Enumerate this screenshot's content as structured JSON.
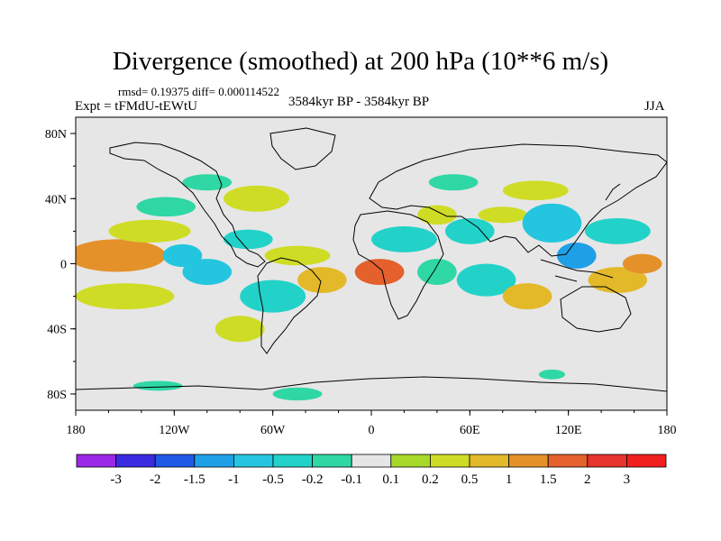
{
  "chart_data": {
    "type": "heatmap",
    "title": "Divergence (smoothed) at 200 hPa (10**6 m/s)",
    "left_annotation": "rmsd= 0.19375 diff= 0.000114522",
    "experiment": "Expt = tFMdU-tEWtU",
    "period": "3584kyr BP - 3584kyr BP",
    "season": "JJA",
    "xlim": [
      -180,
      180
    ],
    "ylim": [
      -90,
      90
    ],
    "x_ticks": [
      {
        "value": -180,
        "label": "180"
      },
      {
        "value": -120,
        "label": "120W"
      },
      {
        "value": -60,
        "label": "60W"
      },
      {
        "value": 0,
        "label": "0"
      },
      {
        "value": 60,
        "label": "60E"
      },
      {
        "value": 120,
        "label": "120E"
      },
      {
        "value": 180,
        "label": "180"
      }
    ],
    "y_ticks": [
      {
        "value": 80,
        "label": "80N"
      },
      {
        "value": 40,
        "label": "40N"
      },
      {
        "value": 0,
        "label": "0"
      },
      {
        "value": -40,
        "label": "40S"
      },
      {
        "value": -80,
        "label": "80S"
      }
    ],
    "colorbar": {
      "levels": [
        "-3",
        "-2",
        "-1.5",
        "-1",
        "-0.5",
        "-0.2",
        "-0.1",
        "0.1",
        "0.2",
        "0.5",
        "1",
        "1.5",
        "2",
        "3"
      ],
      "colors": [
        "#9b28e6",
        "#3c2ae0",
        "#1e5ae6",
        "#1fa0e6",
        "#24c6df",
        "#22d2c8",
        "#2fd7a5",
        "#e6e6e6",
        "#a7d92a",
        "#cfdc25",
        "#e3b92a",
        "#e4912a",
        "#e4602c",
        "#e6332d",
        "#f0201e"
      ]
    },
    "fields": [
      {
        "lon": -155,
        "lat": 5,
        "rx": 30,
        "ry": 10,
        "value": 1.2
      },
      {
        "lon": -135,
        "lat": 20,
        "rx": 25,
        "ry": 7,
        "value": 0.3
      },
      {
        "lon": -150,
        "lat": -20,
        "rx": 30,
        "ry": 8,
        "value": 0.3
      },
      {
        "lon": -115,
        "lat": 5,
        "rx": 12,
        "ry": 7,
        "value": -0.6
      },
      {
        "lon": -100,
        "lat": -5,
        "rx": 15,
        "ry": 8,
        "value": -0.6
      },
      {
        "lon": -125,
        "lat": 35,
        "rx": 18,
        "ry": 6,
        "value": -0.2
      },
      {
        "lon": -70,
        "lat": 40,
        "rx": 20,
        "ry": 8,
        "value": 0.3
      },
      {
        "lon": -75,
        "lat": 15,
        "rx": 15,
        "ry": 6,
        "value": -0.3
      },
      {
        "lon": -45,
        "lat": 5,
        "rx": 20,
        "ry": 6,
        "value": 0.3
      },
      {
        "lon": -60,
        "lat": -20,
        "rx": 20,
        "ry": 10,
        "value": -0.3
      },
      {
        "lon": -80,
        "lat": -40,
        "rx": 15,
        "ry": 8,
        "value": 0.3
      },
      {
        "lon": -30,
        "lat": -10,
        "rx": 15,
        "ry": 8,
        "value": 0.5
      },
      {
        "lon": 5,
        "lat": -5,
        "rx": 15,
        "ry": 8,
        "value": 1.5
      },
      {
        "lon": 20,
        "lat": 15,
        "rx": 20,
        "ry": 8,
        "value": -0.3
      },
      {
        "lon": 40,
        "lat": 30,
        "rx": 12,
        "ry": 6,
        "value": 0.3
      },
      {
        "lon": 40,
        "lat": -5,
        "rx": 12,
        "ry": 8,
        "value": -0.2
      },
      {
        "lon": 60,
        "lat": 20,
        "rx": 15,
        "ry": 8,
        "value": -0.3
      },
      {
        "lon": 70,
        "lat": -10,
        "rx": 18,
        "ry": 10,
        "value": -0.3
      },
      {
        "lon": 80,
        "lat": 30,
        "rx": 15,
        "ry": 5,
        "value": 0.3
      },
      {
        "lon": 95,
        "lat": -20,
        "rx": 15,
        "ry": 8,
        "value": 0.5
      },
      {
        "lon": 110,
        "lat": 25,
        "rx": 18,
        "ry": 12,
        "value": -0.6
      },
      {
        "lon": 125,
        "lat": 5,
        "rx": 12,
        "ry": 8,
        "value": -1.2
      },
      {
        "lon": 150,
        "lat": 20,
        "rx": 20,
        "ry": 8,
        "value": -0.3
      },
      {
        "lon": 150,
        "lat": -10,
        "rx": 18,
        "ry": 8,
        "value": 0.8
      },
      {
        "lon": 165,
        "lat": 0,
        "rx": 12,
        "ry": 6,
        "value": 1.2
      },
      {
        "lon": 100,
        "lat": 45,
        "rx": 20,
        "ry": 6,
        "value": 0.3
      },
      {
        "lon": 50,
        "lat": 50,
        "rx": 15,
        "ry": 5,
        "value": -0.2
      },
      {
        "lon": -100,
        "lat": 50,
        "rx": 15,
        "ry": 5,
        "value": -0.2
      },
      {
        "lon": -130,
        "lat": -75,
        "rx": 15,
        "ry": 3,
        "value": -0.2
      },
      {
        "lon": -45,
        "lat": -80,
        "rx": 15,
        "ry": 4,
        "value": -0.2
      },
      {
        "lon": 110,
        "lat": -68,
        "rx": 8,
        "ry": 3,
        "value": -0.2
      }
    ]
  }
}
